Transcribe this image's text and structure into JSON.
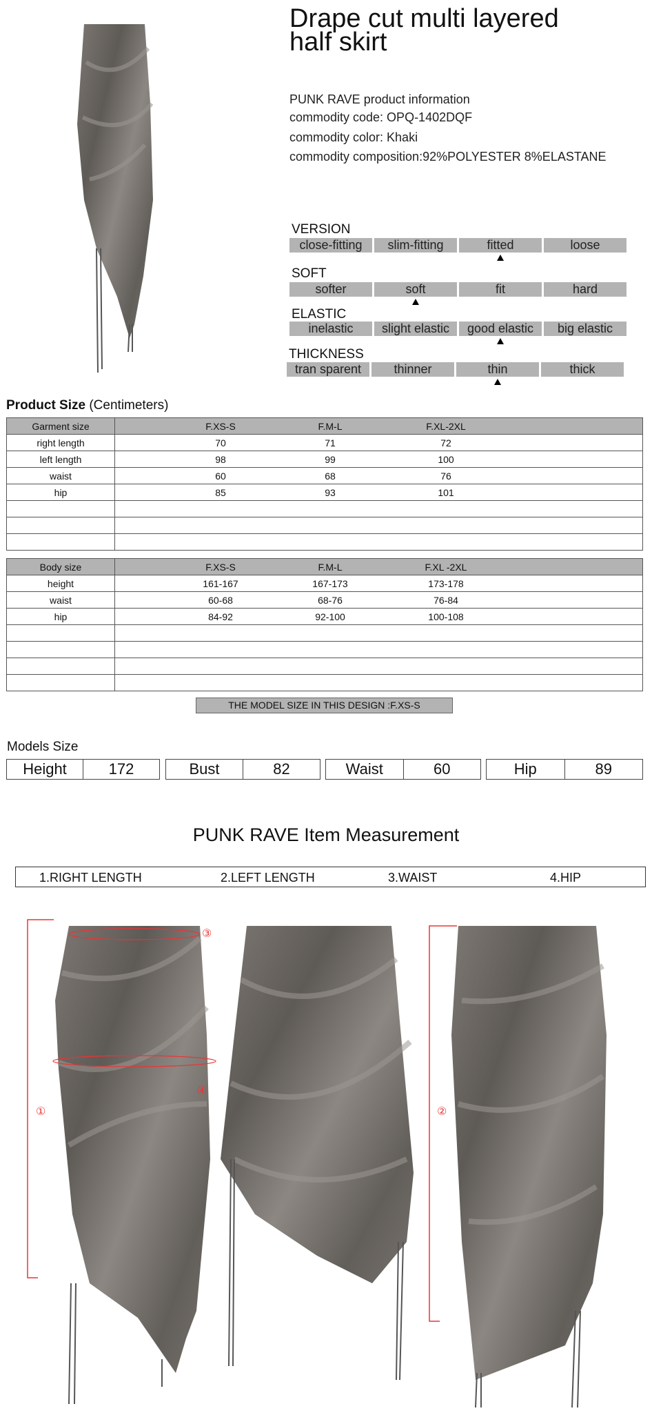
{
  "product": {
    "title_line1": "Drape cut multi layered",
    "title_line2": "half skirt",
    "info": [
      "PUNK RAVE product information",
      "commodity code: OPQ-1402DQF",
      "commodity color: Khaki",
      "commodity composition:92%POLYESTER 8%ELASTANE"
    ]
  },
  "attributes": [
    {
      "label": "VERSION",
      "options": [
        "close-fitting",
        "slim-fitting",
        "fitted",
        "loose"
      ],
      "selected": 2
    },
    {
      "label": "SOFT",
      "options": [
        "softer",
        "soft",
        "fit",
        "hard"
      ],
      "selected": 1
    },
    {
      "label": "ELASTIC",
      "options": [
        "inelastic",
        "slight elastic",
        "good elastic",
        "big elastic"
      ],
      "selected": 2
    },
    {
      "label": "THICKNESS",
      "options": [
        "tran sparent",
        "thinner",
        "thin",
        "thick"
      ],
      "selected": 2
    }
  ],
  "product_size": {
    "title": "Product Size",
    "unit": "(Centimeters)",
    "garment": {
      "header": [
        "Garment size",
        "F.XS-S",
        "F.M-L",
        "F.XL-2XL"
      ],
      "rows": [
        [
          "right length",
          "70",
          "71",
          "72"
        ],
        [
          "left length",
          "98",
          "99",
          "100"
        ],
        [
          "waist",
          "60",
          "68",
          "76"
        ],
        [
          "hip",
          "85",
          "93",
          "101"
        ]
      ]
    },
    "body": {
      "header": [
        "Body size",
        "F.XS-S",
        "F.M-L",
        "F.XL -2XL"
      ],
      "rows": [
        [
          "height",
          "161-167",
          "167-173",
          "173-178"
        ],
        [
          "waist",
          "60-68",
          "68-76",
          "76-84"
        ],
        [
          "hip",
          "84-92",
          "92-100",
          "100-108"
        ]
      ]
    },
    "model_note": "THE MODEL SIZE IN THIS DESIGN :F.XS-S"
  },
  "models_size": {
    "title": "Models Size",
    "items": [
      [
        "Height",
        "172"
      ],
      [
        "Bust",
        "82"
      ],
      [
        "Waist",
        "60"
      ],
      [
        "Hip",
        "89"
      ]
    ]
  },
  "measurement": {
    "title": "PUNK RAVE Item  Measurement",
    "labels": [
      "1.RIGHT LENGTH",
      "2.LEFT LENGTH",
      "3.WAIST",
      "4.HIP"
    ],
    "markers": [
      "①",
      "②",
      "③",
      "④"
    ]
  },
  "colors": {
    "bar": "#b3b3b3",
    "annotation": "#e33333",
    "fabric": "#6e6a66"
  }
}
